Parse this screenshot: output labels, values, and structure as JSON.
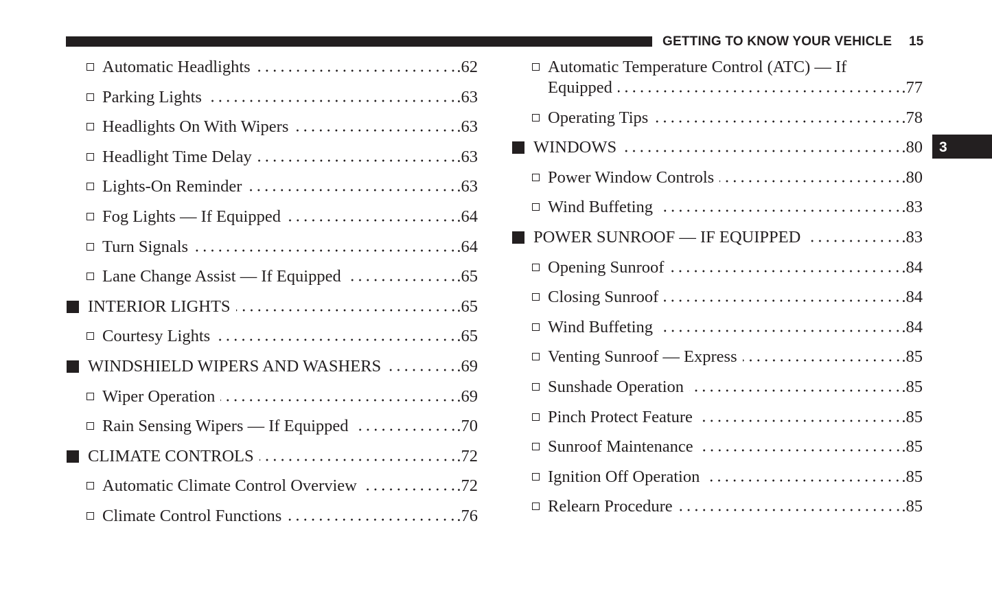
{
  "header": {
    "section_title": "GETTING TO KNOW YOUR VEHICLE",
    "page_number": "15",
    "chapter_tab": "3"
  },
  "left_column": [
    {
      "level": "sub",
      "label": "Automatic Headlights",
      "page": ".62"
    },
    {
      "level": "sub",
      "label": "Parking Lights",
      "page": ".63"
    },
    {
      "level": "sub",
      "label": "Headlights On With Wipers",
      "page": ".63"
    },
    {
      "level": "sub",
      "label": "Headlight Time Delay",
      "page": ".63"
    },
    {
      "level": "sub",
      "label": "Lights-On Reminder",
      "page": ".63"
    },
    {
      "level": "sub",
      "label": "Fog Lights — If Equipped",
      "page": ".64"
    },
    {
      "level": "sub",
      "label": "Turn Signals",
      "page": ".64"
    },
    {
      "level": "sub",
      "label": "Lane Change Assist — If Equipped",
      "page": ".65"
    },
    {
      "level": "main",
      "label": "INTERIOR LIGHTS",
      "page": ".65"
    },
    {
      "level": "sub",
      "label": "Courtesy Lights",
      "page": ".65"
    },
    {
      "level": "main",
      "label": "WINDSHIELD WIPERS AND WASHERS",
      "page": ".69"
    },
    {
      "level": "sub",
      "label": "Wiper Operation",
      "page": ".69"
    },
    {
      "level": "sub",
      "label": "Rain Sensing Wipers — If Equipped",
      "page": ".70"
    },
    {
      "level": "main",
      "label": "CLIMATE CONTROLS",
      "page": ".72"
    },
    {
      "level": "sub",
      "label": "Automatic Climate Control Overview",
      "page": ".72"
    },
    {
      "level": "sub",
      "label": "Climate Control Functions",
      "page": ".76"
    }
  ],
  "right_column": [
    {
      "level": "sub",
      "label": "Automatic Temperature Control (ATC) — If",
      "label_continued": "Equipped",
      "page": ".77"
    },
    {
      "level": "sub",
      "label": "Operating Tips",
      "page": ".78"
    },
    {
      "level": "main",
      "label": "WINDOWS",
      "page": ".80"
    },
    {
      "level": "sub",
      "label": "Power Window Controls",
      "page": ".80"
    },
    {
      "level": "sub",
      "label": "Wind Buffeting",
      "page": ".83"
    },
    {
      "level": "main",
      "label": "POWER SUNROOF — IF EQUIPPED",
      "page": ".83"
    },
    {
      "level": "sub",
      "label": "Opening Sunroof",
      "page": ".84"
    },
    {
      "level": "sub",
      "label": "Closing Sunroof",
      "page": ".84"
    },
    {
      "level": "sub",
      "label": "Wind Buffeting",
      "page": ".84"
    },
    {
      "level": "sub",
      "label": "Venting Sunroof — Express",
      "page": ".85"
    },
    {
      "level": "sub",
      "label": "Sunshade Operation",
      "page": ".85"
    },
    {
      "level": "sub",
      "label": "Pinch Protect Feature",
      "page": ".85"
    },
    {
      "level": "sub",
      "label": "Sunroof Maintenance",
      "page": ".85"
    },
    {
      "level": "sub",
      "label": "Ignition Off Operation",
      "page": ".85"
    },
    {
      "level": "sub",
      "label": "Relearn Procedure",
      "page": ".85"
    }
  ]
}
